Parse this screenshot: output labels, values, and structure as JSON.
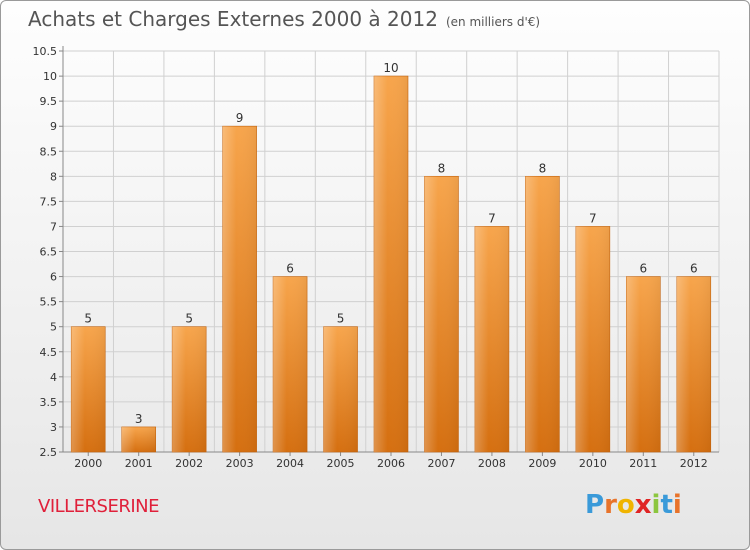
{
  "title": "Achats et Charges Externes 2000 à 2012",
  "subtitle": "(en milliers d'€)",
  "place": "VILLERSERINE",
  "logo": {
    "letters": [
      "P",
      "r",
      "o",
      "x",
      "i",
      "t",
      "i"
    ],
    "colors": [
      "#3a9ad9",
      "#e8732a",
      "#f0b400",
      "#e02424",
      "#8cc63f",
      "#3a9ad9",
      "#e8732a"
    ]
  },
  "chart_data": {
    "type": "bar",
    "categories": [
      "2000",
      "2001",
      "2002",
      "2003",
      "2004",
      "2005",
      "2006",
      "2007",
      "2008",
      "2009",
      "2010",
      "2011",
      "2012"
    ],
    "values": [
      5,
      3,
      5,
      9,
      6,
      5,
      10,
      8,
      7,
      8,
      7,
      6,
      6
    ],
    "value_labels": [
      "5",
      "3",
      "5",
      "9",
      "6",
      "5",
      "10",
      "8",
      "7",
      "8",
      "7",
      "6",
      "6"
    ],
    "title": "Achats et Charges Externes 2000 à 2012",
    "xlabel": "",
    "ylabel": "",
    "ylim": [
      2.5,
      10.5
    ],
    "yticks": [
      "2.5",
      "3",
      "3.5",
      "4",
      "4.5",
      "5",
      "5.5",
      "6",
      "6.5",
      "7",
      "7.5",
      "8",
      "8.5",
      "9",
      "9.5",
      "10",
      "10.5"
    ],
    "grid": true,
    "bar_color": "#f0962e"
  }
}
